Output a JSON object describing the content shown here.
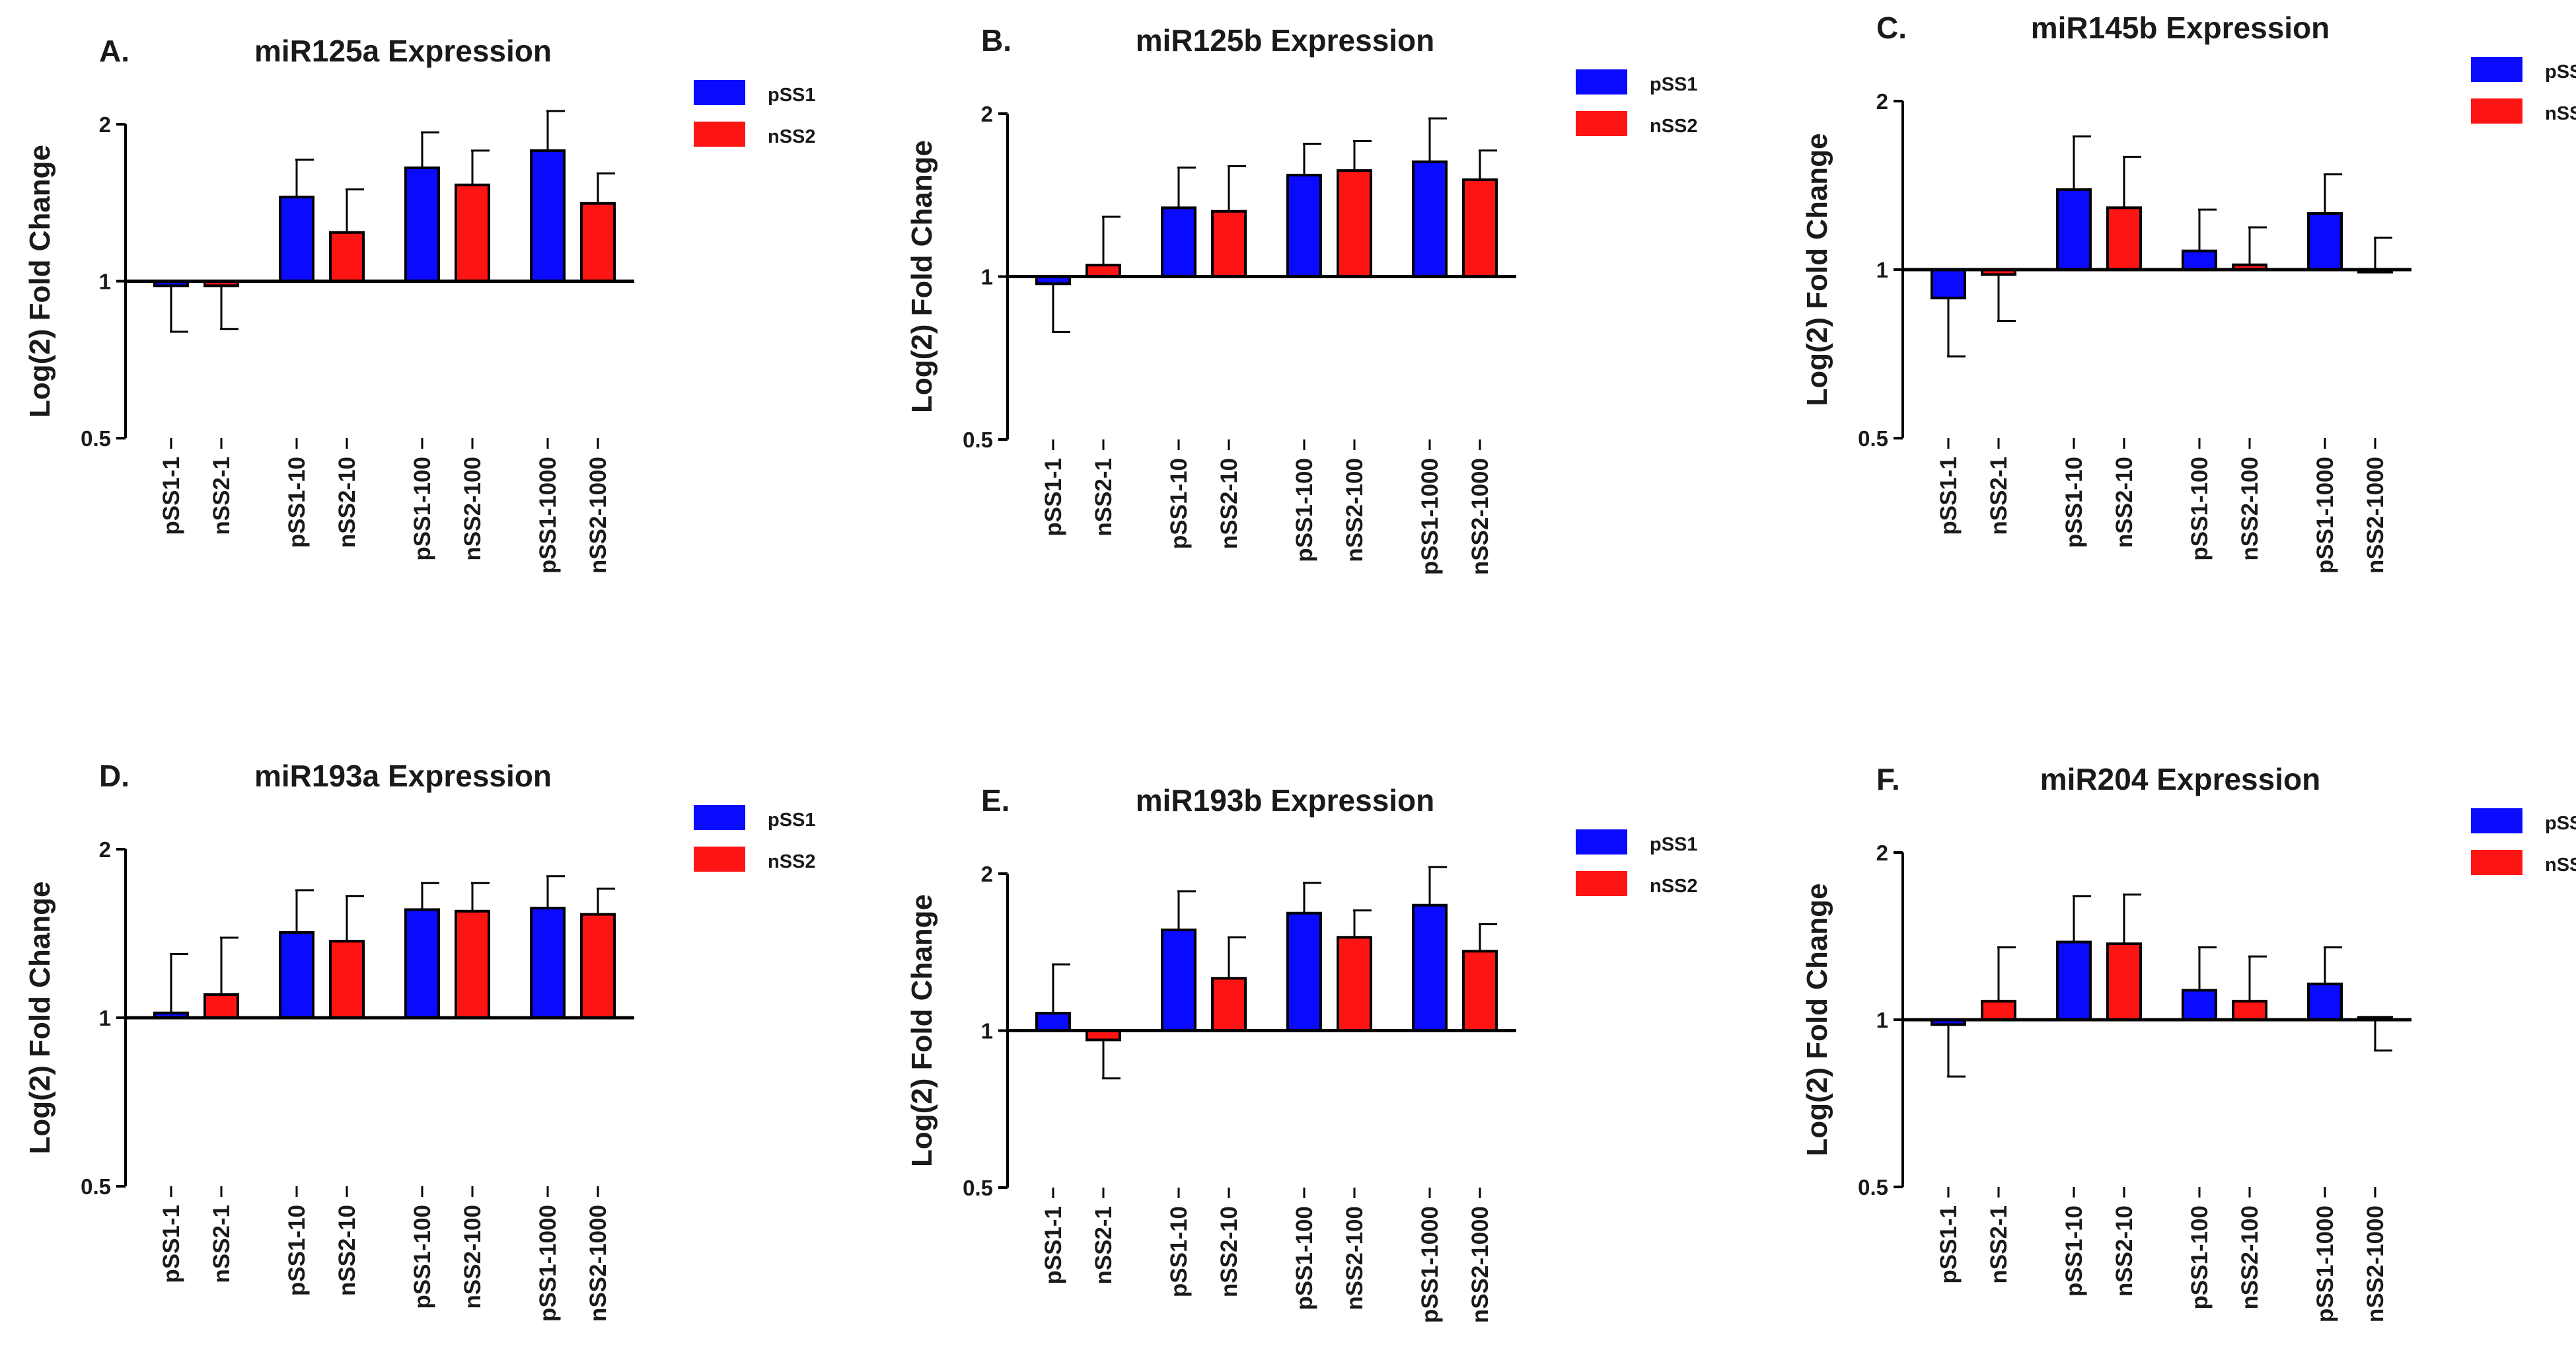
{
  "colors": {
    "pSS1": "#0a0aff",
    "nSS2": "#ff1414",
    "axis": "#000000",
    "text": "#1a1a1a"
  },
  "legend": [
    "pSS1",
    "nSS2"
  ],
  "chart_data": [
    {
      "type": "bar",
      "panel": "A.",
      "title": "miR125a Expression",
      "ylabel": "Log(2) Fold Change",
      "yscale": "log2",
      "ylim": [
        0.5,
        2
      ],
      "yticks": [
        "0.5",
        "1",
        "2"
      ],
      "baseline": 1,
      "categories": [
        "pSS1-1",
        "nSS2-1",
        "pSS1-10",
        "nSS2-10",
        "pSS1-100",
        "nSS2-100",
        "pSS1-1000",
        "nSS2-1000"
      ],
      "series": [
        {
          "name": "pSS1",
          "values": [
            0.98,
            null,
            1.45,
            null,
            1.65,
            null,
            1.78,
            null
          ],
          "errors": [
            0.8,
            null,
            1.71,
            null,
            1.93,
            null,
            2.12,
            null
          ]
        },
        {
          "name": "nSS2",
          "values": [
            null,
            0.98,
            null,
            1.24,
            null,
            1.53,
            null,
            1.41
          ],
          "errors": [
            null,
            0.81,
            null,
            1.5,
            null,
            1.78,
            null,
            1.61
          ]
        }
      ]
    },
    {
      "type": "bar",
      "panel": "B.",
      "title": "miR125b Expression",
      "ylabel": "Log(2) Fold Change",
      "yscale": "log2",
      "ylim": [
        0.5,
        2
      ],
      "yticks": [
        "0.5",
        "1",
        "2"
      ],
      "baseline": 1,
      "categories": [
        "pSS1-1",
        "nSS2-1",
        "pSS1-10",
        "nSS2-10",
        "pSS1-100",
        "nSS2-100",
        "pSS1-1000",
        "nSS2-1000"
      ],
      "series": [
        {
          "name": "pSS1",
          "values": [
            0.97,
            null,
            1.34,
            null,
            1.54,
            null,
            1.63,
            null
          ],
          "errors": [
            0.79,
            null,
            1.59,
            null,
            1.76,
            null,
            1.96,
            null
          ]
        },
        {
          "name": "nSS2",
          "values": [
            null,
            1.05,
            null,
            1.32,
            null,
            1.57,
            null,
            1.51
          ],
          "errors": [
            null,
            1.29,
            null,
            1.6,
            null,
            1.78,
            null,
            1.71
          ]
        }
      ]
    },
    {
      "type": "bar",
      "panel": "C.",
      "title": "miR145b Expression",
      "ylabel": "Log(2) Fold Change",
      "yscale": "log2",
      "ylim": [
        0.5,
        2
      ],
      "yticks": [
        "0.5",
        "1",
        "2"
      ],
      "baseline": 1,
      "categories": [
        "pSS1-1",
        "nSS2-1",
        "pSS1-10",
        "nSS2-10",
        "pSS1-100",
        "nSS2-100",
        "pSS1-1000",
        "nSS2-1000"
      ],
      "series": [
        {
          "name": "pSS1",
          "values": [
            0.89,
            null,
            1.39,
            null,
            1.08,
            null,
            1.26,
            null
          ],
          "errors": [
            0.7,
            null,
            1.73,
            null,
            1.28,
            null,
            1.48,
            null
          ]
        },
        {
          "name": "nSS2",
          "values": [
            null,
            0.98,
            null,
            1.29,
            null,
            1.02,
            null,
            0.99
          ],
          "errors": [
            null,
            0.81,
            null,
            1.59,
            null,
            1.19,
            null,
            1.14
          ]
        }
      ]
    },
    {
      "type": "bar",
      "panel": "D.",
      "title": "miR193a Expression",
      "ylabel": "Log(2) Fold Change",
      "yscale": "log2",
      "ylim": [
        0.5,
        2
      ],
      "yticks": [
        "0.5",
        "1",
        "2"
      ],
      "baseline": 1,
      "categories": [
        "pSS1-1",
        "nSS2-1",
        "pSS1-10",
        "nSS2-10",
        "pSS1-100",
        "nSS2-100",
        "pSS1-1000",
        "nSS2-1000"
      ],
      "series": [
        {
          "name": "pSS1",
          "values": [
            1.02,
            null,
            1.42,
            null,
            1.56,
            null,
            1.57,
            null
          ],
          "errors": [
            1.3,
            null,
            1.69,
            null,
            1.74,
            null,
            1.79,
            null
          ]
        },
        {
          "name": "nSS2",
          "values": [
            null,
            1.1,
            null,
            1.37,
            null,
            1.55,
            null,
            1.53
          ],
          "errors": [
            null,
            1.39,
            null,
            1.65,
            null,
            1.74,
            null,
            1.7
          ]
        }
      ]
    },
    {
      "type": "bar",
      "panel": "E.",
      "title": "miR193b Expression",
      "ylabel": "Log(2) Fold Change",
      "yscale": "log2",
      "ylim": [
        0.5,
        2
      ],
      "yticks": [
        "0.5",
        "1",
        "2"
      ],
      "baseline": 1,
      "categories": [
        "pSS1-1",
        "nSS2-1",
        "pSS1-10",
        "nSS2-10",
        "pSS1-100",
        "nSS2-100",
        "pSS1-1000",
        "nSS2-1000"
      ],
      "series": [
        {
          "name": "pSS1",
          "values": [
            1.08,
            null,
            1.56,
            null,
            1.68,
            null,
            1.74,
            null
          ],
          "errors": [
            1.34,
            null,
            1.85,
            null,
            1.92,
            null,
            2.06,
            null
          ]
        },
        {
          "name": "nSS2",
          "values": [
            null,
            0.96,
            null,
            1.26,
            null,
            1.51,
            null,
            1.42
          ],
          "errors": [
            null,
            0.81,
            null,
            1.51,
            null,
            1.7,
            null,
            1.6
          ]
        }
      ]
    },
    {
      "type": "bar",
      "panel": "F.",
      "title": "miR204 Expression",
      "ylabel": "Log(2) Fold Change",
      "yscale": "log2",
      "ylim": [
        0.5,
        2
      ],
      "yticks": [
        "0.5",
        "1",
        "2"
      ],
      "baseline": 1,
      "categories": [
        "pSS1-1",
        "nSS2-1",
        "pSS1-10",
        "nSS2-10",
        "pSS1-100",
        "nSS2-100",
        "pSS1-1000",
        "nSS2-1000"
      ],
      "series": [
        {
          "name": "pSS1",
          "values": [
            0.98,
            null,
            1.38,
            null,
            1.13,
            null,
            1.16,
            null
          ],
          "errors": [
            0.79,
            null,
            1.67,
            null,
            1.35,
            null,
            1.35,
            null
          ]
        },
        {
          "name": "nSS2",
          "values": [
            null,
            1.08,
            null,
            1.37,
            null,
            1.08,
            null,
            1.01
          ],
          "errors": [
            null,
            1.35,
            null,
            1.68,
            null,
            1.3,
            null,
            0.88
          ]
        }
      ]
    }
  ]
}
